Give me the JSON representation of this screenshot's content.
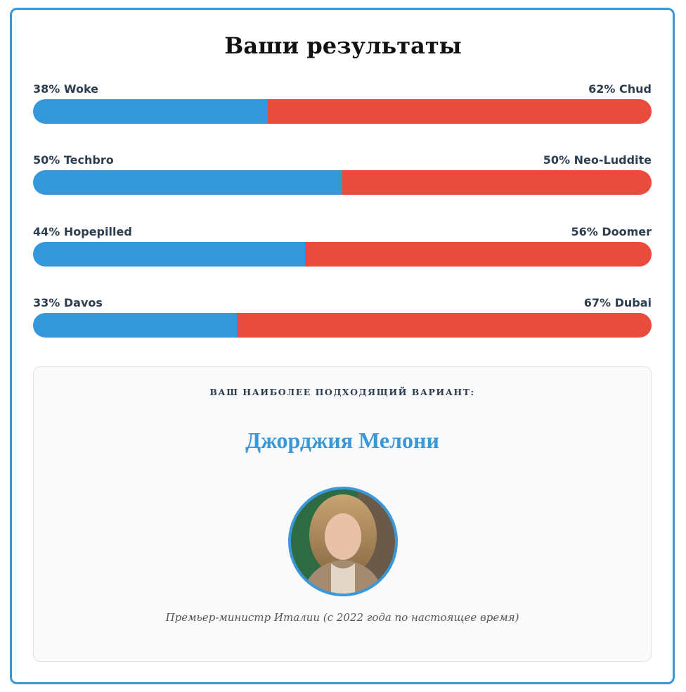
{
  "title": "Ваши результаты",
  "results": [
    {
      "left_label": "38% Woke",
      "left_value": 38,
      "right_label": "62% Chud",
      "right_value": 62
    },
    {
      "left_label": "50% Techbro",
      "left_value": 50,
      "right_label": "50% Neo-Luddite",
      "right_value": 50
    },
    {
      "left_label": "44% Hopepilled",
      "left_value": 44,
      "right_label": "56% Doomer",
      "right_value": 56
    },
    {
      "left_label": "33% Davos",
      "left_value": 33,
      "right_label": "67% Dubai",
      "right_value": 67
    }
  ],
  "left_color": "#3498db",
  "right_color": "#e74c3c",
  "match": {
    "heading": "ВАШ НАИБОЛЕЕ ПОДХОДЯЩИЙ ВАРИАНТ:",
    "name": "Джорджия Мелони",
    "caption": "Премьер-министр Италии (с 2022 года по настоящее время)"
  }
}
